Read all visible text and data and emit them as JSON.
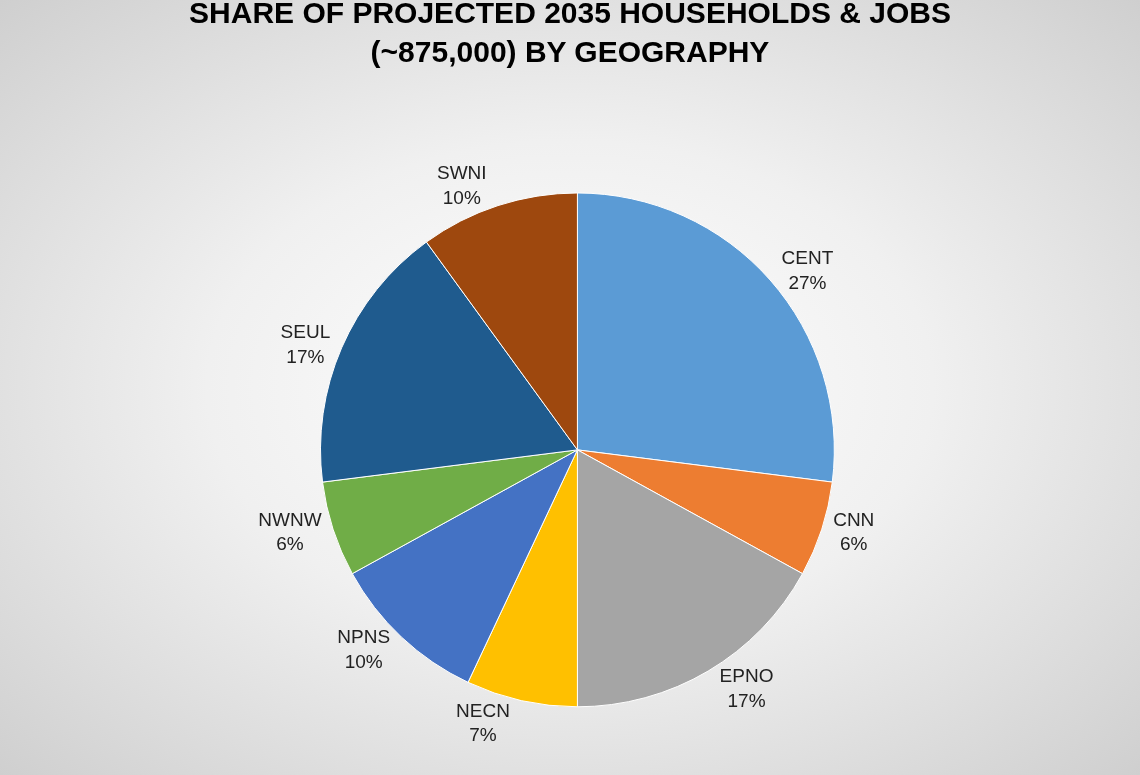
{
  "chart_data": {
    "type": "pie",
    "title": "SHARE OF PROJECTED 2035 HOUSEHOLDS & JOBS\n(~875,000) BY GEOGRAPHY",
    "categories": [
      "CENT",
      "CNN",
      "EPNO",
      "NECN",
      "NPNS",
      "NWNW",
      "SEUL",
      "SWNI"
    ],
    "values": [
      27,
      6,
      17,
      7,
      10,
      6,
      17,
      10
    ],
    "value_labels": [
      "27%",
      "6%",
      "17%",
      "7%",
      "10%",
      "6%",
      "17%",
      "10%"
    ],
    "colors": [
      "#5b9bd5",
      "#ed7d31",
      "#a5a5a5",
      "#ffc000",
      "#4472c4",
      "#70ad47",
      "#1f5b8e",
      "#9e480e"
    ],
    "legend": false
  }
}
